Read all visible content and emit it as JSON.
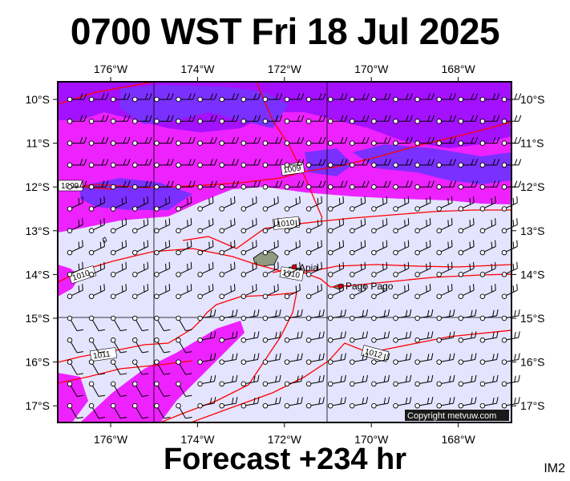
{
  "title": "0700 WST Fri 18 Jul 2025",
  "subtitle": "Forecast +234 hr",
  "model_tag": "IM2",
  "copyright": "Copyright metvuw.com",
  "axes": {
    "lon_ticks": [
      "176°W",
      "174°W",
      "172°W",
      "170°W",
      "168°W"
    ],
    "lon_values": [
      -176,
      -174,
      -172,
      -170,
      -168
    ],
    "lat_ticks": [
      "10°S",
      "11°S",
      "12°S",
      "13°S",
      "14°S",
      "15°S",
      "16°S",
      "17°S"
    ],
    "lat_values": [
      -10,
      -11,
      -12,
      -13,
      -14,
      -15,
      -16,
      -17
    ]
  },
  "isobars": [
    {
      "label": "1009",
      "value": 1009
    },
    {
      "label": "1009",
      "value": 1009
    },
    {
      "label": "1010",
      "value": 1010
    },
    {
      "label": "1010",
      "value": 1010
    },
    {
      "label": "1010",
      "value": 1010
    },
    {
      "label": "1011",
      "value": 1011
    },
    {
      "label": "1012",
      "value": 1012
    }
  ],
  "places": [
    {
      "name": "Apia",
      "lon": -171.77,
      "lat": -13.83
    },
    {
      "name": "Pago Pago",
      "lon": -170.7,
      "lat": -14.28
    }
  ],
  "colors": {
    "background_field": "#e4e4ff",
    "rain_magenta": "#ff00ff",
    "rain_purple": "#aa00ff",
    "rain_violet": "#7a22ff",
    "isobar": "#ff0000",
    "place_dot": "#cc0000",
    "land": "#909a82"
  }
}
